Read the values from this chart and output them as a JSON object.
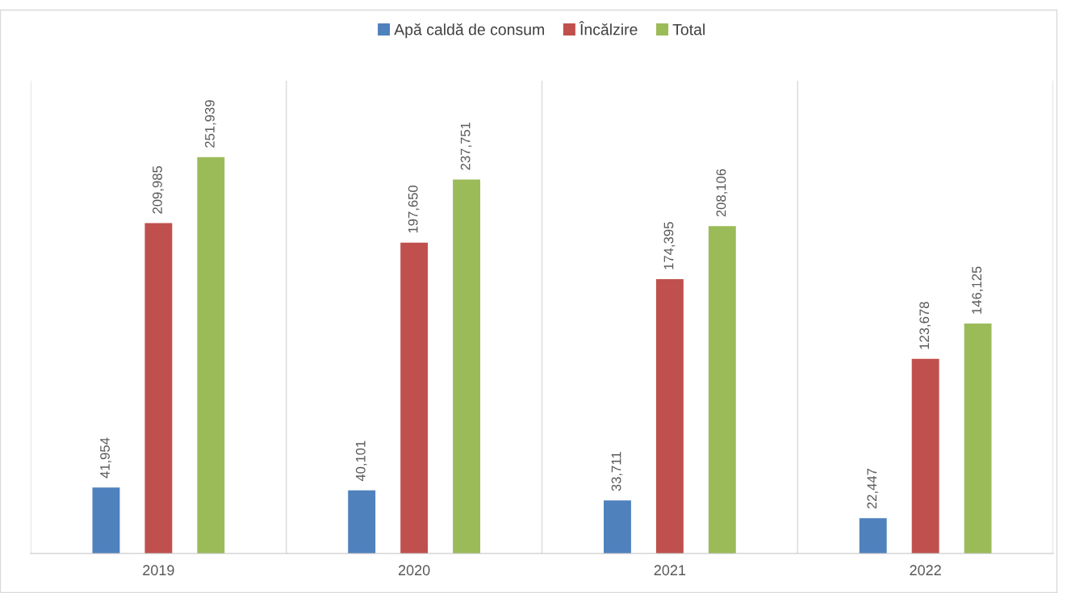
{
  "chart_data": {
    "type": "bar",
    "categories": [
      "2019",
      "2020",
      "2021",
      "2022"
    ],
    "series": [
      {
        "name": "Apă caldă de consum",
        "color": "#4f81bd",
        "values": [
          41954,
          40101,
          33711,
          22447
        ],
        "value_labels": [
          "41,954",
          "40,101",
          "33,711",
          "22,447"
        ]
      },
      {
        "name": "Încălzire",
        "color": "#c0504d",
        "values": [
          209985,
          197650,
          174395,
          123678
        ],
        "value_labels": [
          "209,985",
          "197,650",
          "174,395",
          "123,678"
        ]
      },
      {
        "name": "Total",
        "color": "#9bbb59",
        "values": [
          251939,
          237751,
          208106,
          146125
        ],
        "value_labels": [
          "251,939",
          "237,751",
          "208,106",
          "146,125"
        ]
      }
    ],
    "grid": "x",
    "legend": "top",
    "tick_labels": "x"
  }
}
